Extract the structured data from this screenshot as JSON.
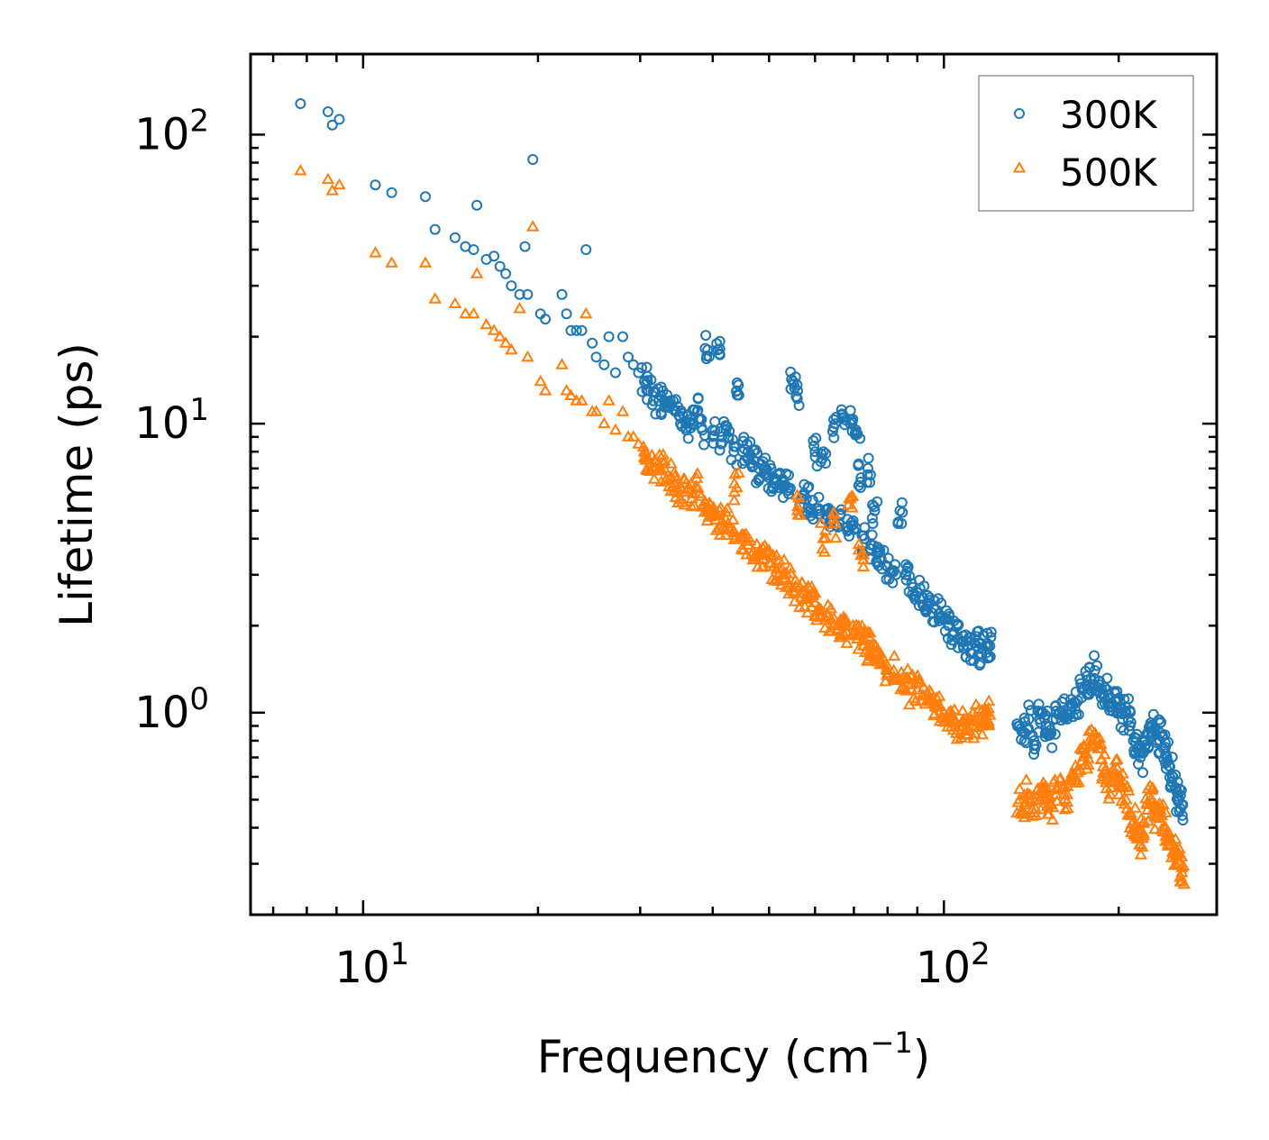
{
  "chart_data": {
    "type": "scatter",
    "xscale": "log",
    "yscale": "log",
    "xlim": [
      6.4,
      295
    ],
    "ylim": [
      0.2,
      190
    ],
    "xlabel": "Frequency (cm",
    "xlabel_sup": "−1",
    "xlabel_end": ")",
    "ylabel": "Lifetime (ps)",
    "legend_position": "top-right",
    "x_ticks": [
      {
        "base": "10",
        "exp": "1",
        "value": 10
      },
      {
        "base": "10",
        "exp": "2",
        "value": 100
      }
    ],
    "y_ticks": [
      {
        "base": "10",
        "exp": "0",
        "value": 1
      },
      {
        "base": "10",
        "exp": "1",
        "value": 10
      },
      {
        "base": "10",
        "exp": "2",
        "value": 100
      }
    ],
    "series": [
      {
        "name": "300K",
        "marker": "circle",
        "color": "#1f77b4",
        "points": [
          [
            7.8,
            128
          ],
          [
            8.7,
            120
          ],
          [
            8.85,
            108
          ],
          [
            9.1,
            113
          ],
          [
            10.5,
            67
          ],
          [
            11.2,
            63
          ],
          [
            12.8,
            61
          ],
          [
            13.3,
            47
          ],
          [
            14.4,
            44
          ],
          [
            15.0,
            41
          ],
          [
            15.5,
            40
          ],
          [
            16.3,
            37
          ],
          [
            16.8,
            38
          ],
          [
            17.2,
            35
          ],
          [
            17.6,
            33
          ],
          [
            18.0,
            30
          ],
          [
            18.6,
            28
          ],
          [
            19.2,
            28
          ],
          [
            19.6,
            82
          ],
          [
            19.0,
            41
          ],
          [
            15.7,
            57
          ],
          [
            20.2,
            24
          ],
          [
            20.6,
            23
          ],
          [
            22.0,
            28
          ],
          [
            22.4,
            24
          ],
          [
            22.8,
            21
          ],
          [
            23.3,
            21
          ],
          [
            23.8,
            21
          ],
          [
            24.2,
            40
          ],
          [
            24.8,
            19
          ],
          [
            25.2,
            17
          ],
          [
            26.0,
            16
          ],
          [
            26.5,
            20
          ],
          [
            27.2,
            15
          ],
          [
            28.0,
            20
          ],
          [
            28.6,
            17
          ],
          [
            29.2,
            16
          ],
          [
            29.8,
            15
          ],
          [
            30.5,
            14
          ],
          [
            31.0,
            13
          ],
          [
            31.6,
            12
          ],
          [
            32.3,
            12
          ],
          [
            33.0,
            12
          ],
          [
            33.8,
            12
          ],
          [
            34.5,
            11
          ],
          [
            35.2,
            10
          ],
          [
            36.0,
            10
          ],
          [
            36.8,
            10
          ],
          [
            37.6,
            11
          ],
          [
            38.4,
            9.5
          ],
          [
            39.2,
            18
          ],
          [
            40.8,
            18
          ],
          [
            40.0,
            9.5
          ],
          [
            41.5,
            9
          ],
          [
            42.5,
            9
          ],
          [
            43.5,
            8
          ],
          [
            44.0,
            13
          ],
          [
            45.0,
            8
          ],
          [
            46.0,
            8
          ],
          [
            47.0,
            7.5
          ],
          [
            48.0,
            7
          ],
          [
            49.0,
            7
          ],
          [
            50.0,
            6.5
          ],
          [
            51.0,
            6.5
          ],
          [
            52.0,
            6
          ],
          [
            53.0,
            6
          ],
          [
            54.0,
            6
          ],
          [
            55.0,
            14
          ],
          [
            56.0,
            13
          ],
          [
            57.0,
            5.5
          ],
          [
            58.0,
            5.5
          ],
          [
            59.0,
            5
          ],
          [
            60.0,
            8
          ],
          [
            61.0,
            5
          ],
          [
            62.0,
            8
          ],
          [
            63.0,
            4.8
          ],
          [
            64.0,
            4.6
          ],
          [
            65.0,
            10
          ],
          [
            66.0,
            4.5
          ],
          [
            67.0,
            10.5
          ],
          [
            68.0,
            4.4
          ],
          [
            69.0,
            10
          ],
          [
            70.0,
            4.3
          ],
          [
            71.0,
            9.2
          ],
          [
            72.0,
            6.5
          ],
          [
            73.0,
            4
          ],
          [
            74.0,
            7
          ],
          [
            75.0,
            3.8
          ],
          [
            76.0,
            5
          ],
          [
            77.0,
            3.6
          ],
          [
            78.0,
            3.4
          ],
          [
            80.0,
            3.2
          ],
          [
            82.0,
            3.1
          ],
          [
            84.0,
            5
          ],
          [
            86.0,
            3
          ],
          [
            88.0,
            2.8
          ],
          [
            90.0,
            2.6
          ],
          [
            92.0,
            2.5
          ],
          [
            94.0,
            2.4
          ],
          [
            96.0,
            2.3
          ],
          [
            98.0,
            2.2
          ],
          [
            100.0,
            2.1
          ],
          [
            102.0,
            2.0
          ],
          [
            104.0,
            1.9
          ],
          [
            106.0,
            1.8
          ],
          [
            108.0,
            1.7
          ],
          [
            110.0,
            1.7
          ],
          [
            112.0,
            1.6
          ],
          [
            114.0,
            1.7
          ],
          [
            116.0,
            1.6
          ],
          [
            118.0,
            1.7
          ],
          [
            120.0,
            1.7
          ],
          [
            135.0,
            0.9
          ],
          [
            138.0,
            0.85
          ],
          [
            140.0,
            0.95
          ],
          [
            143.0,
            0.8
          ],
          [
            146.0,
            0.95
          ],
          [
            148.0,
            1.0
          ],
          [
            150.0,
            0.9
          ],
          [
            153.0,
            0.85
          ],
          [
            156.0,
            0.95
          ],
          [
            160.0,
            1.0
          ],
          [
            163.0,
            0.95
          ],
          [
            166.0,
            1.05
          ],
          [
            170.0,
            1.1
          ],
          [
            173.0,
            1.2
          ],
          [
            176.0,
            1.25
          ],
          [
            179.0,
            1.3
          ],
          [
            182.0,
            1.4
          ],
          [
            185.0,
            1.25
          ],
          [
            188.0,
            1.15
          ],
          [
            191.0,
            1.2
          ],
          [
            194.0,
            1.05
          ],
          [
            197.0,
            1.1
          ],
          [
            200.0,
            1.0
          ],
          [
            203.0,
            0.95
          ],
          [
            206.0,
            1.0
          ],
          [
            209.0,
            0.9
          ],
          [
            212.0,
            0.8
          ],
          [
            215.0,
            0.75
          ],
          [
            218.0,
            0.7
          ],
          [
            221.0,
            0.8
          ],
          [
            224.0,
            0.85
          ],
          [
            227.0,
            0.92
          ],
          [
            230.0,
            0.88
          ],
          [
            233.0,
            0.8
          ],
          [
            236.0,
            0.85
          ],
          [
            239.0,
            0.75
          ],
          [
            242.0,
            0.7
          ],
          [
            245.0,
            0.65
          ],
          [
            248.0,
            0.6
          ],
          [
            251.0,
            0.55
          ],
          [
            254.0,
            0.5
          ],
          [
            257.0,
            0.48
          ]
        ]
      },
      {
        "name": "500K",
        "marker": "triangle",
        "color": "#ff7f0e",
        "points": [
          [
            7.8,
            75
          ],
          [
            8.7,
            70
          ],
          [
            8.85,
            64
          ],
          [
            9.1,
            67
          ],
          [
            10.5,
            39
          ],
          [
            11.2,
            36
          ],
          [
            12.8,
            36
          ],
          [
            13.3,
            27
          ],
          [
            14.4,
            26
          ],
          [
            15.0,
            24
          ],
          [
            15.5,
            24
          ],
          [
            15.7,
            33
          ],
          [
            16.3,
            22
          ],
          [
            16.8,
            21
          ],
          [
            17.2,
            20
          ],
          [
            17.6,
            19
          ],
          [
            18.0,
            18
          ],
          [
            18.6,
            25
          ],
          [
            19.2,
            17
          ],
          [
            19.6,
            48
          ],
          [
            20.2,
            14
          ],
          [
            20.6,
            13
          ],
          [
            22.0,
            16
          ],
          [
            22.4,
            13
          ],
          [
            22.8,
            12.5
          ],
          [
            23.3,
            12
          ],
          [
            23.8,
            12
          ],
          [
            24.2,
            24
          ],
          [
            24.8,
            11
          ],
          [
            25.2,
            11
          ],
          [
            26.0,
            10
          ],
          [
            26.5,
            12
          ],
          [
            27.2,
            9.5
          ],
          [
            28.0,
            11
          ],
          [
            28.6,
            9
          ],
          [
            29.2,
            9
          ],
          [
            29.8,
            8.5
          ],
          [
            30.5,
            8
          ],
          [
            31.0,
            7.5
          ],
          [
            31.6,
            7
          ],
          [
            32.3,
            7
          ],
          [
            33.0,
            7
          ],
          [
            33.8,
            6.5
          ],
          [
            34.5,
            6.2
          ],
          [
            35.2,
            6
          ],
          [
            36.0,
            5.8
          ],
          [
            36.8,
            5.5
          ],
          [
            37.6,
            6
          ],
          [
            38.4,
            5.2
          ],
          [
            39.2,
            5
          ],
          [
            40.0,
            5
          ],
          [
            40.8,
            4.8
          ],
          [
            41.5,
            4.6
          ],
          [
            42.5,
            4.5
          ],
          [
            43.5,
            4.2
          ],
          [
            44.0,
            6
          ],
          [
            45.0,
            4
          ],
          [
            46.0,
            3.8
          ],
          [
            47.0,
            3.6
          ],
          [
            48.0,
            3.5
          ],
          [
            49.0,
            3.4
          ],
          [
            50.0,
            3.3
          ],
          [
            51.0,
            3.2
          ],
          [
            52.0,
            3.0
          ],
          [
            53.0,
            3.0
          ],
          [
            54.0,
            2.8
          ],
          [
            55.0,
            2.7
          ],
          [
            56.0,
            5
          ],
          [
            57.0,
            2.6
          ],
          [
            58.0,
            2.5
          ],
          [
            59.0,
            2.5
          ],
          [
            60.0,
            2.4
          ],
          [
            61.0,
            2.3
          ],
          [
            62.0,
            4
          ],
          [
            63.0,
            2.2
          ],
          [
            64.0,
            2.1
          ],
          [
            65.0,
            4.5
          ],
          [
            66.0,
            2.0
          ],
          [
            67.0,
            2.0
          ],
          [
            68.0,
            1.9
          ],
          [
            69.0,
            5.5
          ],
          [
            70.0,
            1.9
          ],
          [
            71.0,
            1.8
          ],
          [
            72.0,
            3.5
          ],
          [
            73.0,
            1.8
          ],
          [
            74.0,
            1.7
          ],
          [
            75.0,
            1.7
          ],
          [
            76.0,
            1.6
          ],
          [
            77.0,
            1.5
          ],
          [
            78.0,
            1.5
          ],
          [
            80.0,
            1.4
          ],
          [
            82.0,
            1.4
          ],
          [
            84.0,
            1.3
          ],
          [
            86.0,
            1.3
          ],
          [
            88.0,
            1.2
          ],
          [
            90.0,
            1.2
          ],
          [
            92.0,
            1.15
          ],
          [
            94.0,
            1.1
          ],
          [
            96.0,
            1.1
          ],
          [
            98.0,
            1.05
          ],
          [
            100.0,
            1.0
          ],
          [
            102.0,
            1.0
          ],
          [
            104.0,
            0.95
          ],
          [
            106.0,
            0.9
          ],
          [
            108.0,
            0.9
          ],
          [
            110.0,
            0.88
          ],
          [
            112.0,
            0.9
          ],
          [
            114.0,
            0.95
          ],
          [
            116.0,
            0.92
          ],
          [
            118.0,
            1.0
          ],
          [
            120.0,
            0.98
          ],
          [
            135.0,
            0.5
          ],
          [
            138.0,
            0.48
          ],
          [
            140.0,
            0.52
          ],
          [
            143.0,
            0.45
          ],
          [
            146.0,
            0.5
          ],
          [
            148.0,
            0.55
          ],
          [
            150.0,
            0.5
          ],
          [
            153.0,
            0.48
          ],
          [
            156.0,
            0.52
          ],
          [
            160.0,
            0.55
          ],
          [
            163.0,
            0.52
          ],
          [
            166.0,
            0.6
          ],
          [
            170.0,
            0.62
          ],
          [
            173.0,
            0.68
          ],
          [
            176.0,
            0.72
          ],
          [
            179.0,
            0.78
          ],
          [
            182.0,
            0.85
          ],
          [
            185.0,
            0.75
          ],
          [
            188.0,
            0.65
          ],
          [
            191.0,
            0.6
          ],
          [
            194.0,
            0.55
          ],
          [
            197.0,
            0.62
          ],
          [
            200.0,
            0.58
          ],
          [
            203.0,
            0.55
          ],
          [
            206.0,
            0.5
          ],
          [
            209.0,
            0.45
          ],
          [
            212.0,
            0.42
          ],
          [
            215.0,
            0.38
          ],
          [
            218.0,
            0.35
          ],
          [
            221.0,
            0.42
          ],
          [
            224.0,
            0.46
          ],
          [
            227.0,
            0.5
          ],
          [
            230.0,
            0.48
          ],
          [
            233.0,
            0.44
          ],
          [
            236.0,
            0.46
          ],
          [
            239.0,
            0.4
          ],
          [
            242.0,
            0.38
          ],
          [
            245.0,
            0.35
          ],
          [
            248.0,
            0.33
          ],
          [
            251.0,
            0.32
          ],
          [
            254.0,
            0.3
          ],
          [
            257.0,
            0.28
          ]
        ]
      }
    ]
  }
}
